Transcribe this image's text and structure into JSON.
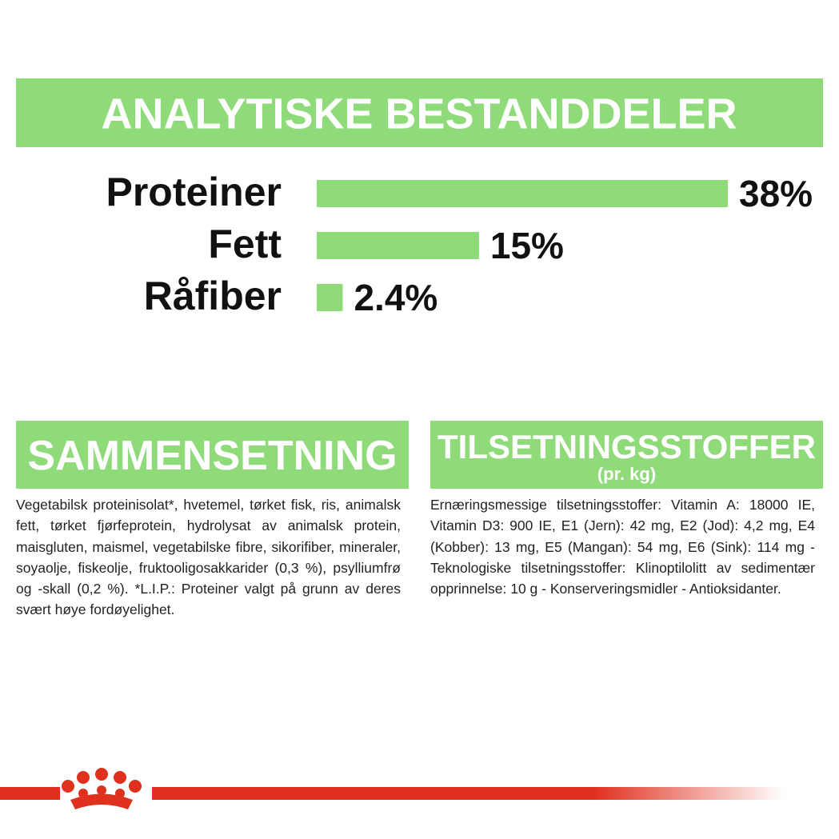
{
  "chart_data": {
    "type": "bar",
    "title": "ANALYTISKE BESTANDDELER",
    "categories": [
      "Proteiner",
      "Fett",
      "Råfiber"
    ],
    "values": [
      38,
      15,
      2.4
    ],
    "value_labels": [
      "38%",
      "15%",
      "2.4%"
    ],
    "color": "#8fdb7a"
  },
  "sections": [
    {
      "title": "SAMMENSETNING",
      "text": "Vegetabilsk proteinisolat*, hvetemel, tørket fisk, ris, animalsk fett, tørket fjørfeprotein, hydrolysat av animalsk protein, maisgluten, maismel, vegetabilske fibre, sikorifiber, mineraler, soyaolje, fiskeolje, fruktooligosakkarider (0,3 %), psylliumfrø og -skall (0,2 %). *L.I.P.: Proteiner valgt på grunn av deres svært høye fordøyelighet."
    },
    {
      "title": "TILSETNINGSSTOFFER",
      "subtitle": "(pr. kg)",
      "text": "Ernæringsmessige tilsetningsstoffer: Vitamin A: 18000 IE, Vitamin D3: 900 IE, E1 (Jern): 42 mg, E2 (Jod): 4,2 mg, E4 (Kobber): 13 mg, E5 (Mangan): 54 mg, E6 (Sink): 114 mg - Teknologiske tilsetningsstoffer: Klinoptilolitt av sedimentær opprinnelse: 10 g - Konserveringsmidler - Antioksidanter."
    }
  ]
}
